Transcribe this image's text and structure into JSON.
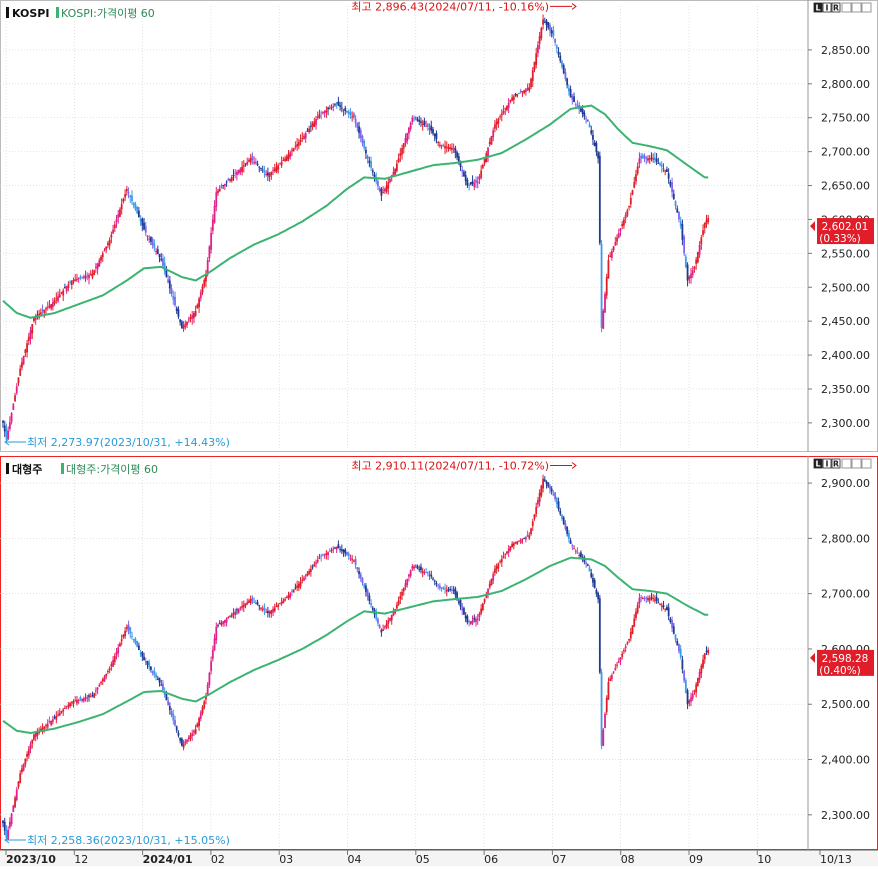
{
  "bottom_axis": {
    "labels": [
      "2023/10",
      "12",
      "2024/01",
      "02",
      "03",
      "04",
      "05",
      "06",
      "07",
      "08",
      "09",
      "10",
      "10/13"
    ],
    "bold": [
      true,
      false,
      true,
      false,
      false,
      false,
      false,
      false,
      false,
      false,
      false,
      false,
      false
    ]
  },
  "chart_data": [
    {
      "type": "candlestick",
      "series": [
        {
          "name": "KOSPI"
        },
        {
          "name": "KOSPI:가격이평 60"
        }
      ],
      "legend_position": "top-left",
      "panel_icons": [
        "L",
        "I",
        "R"
      ],
      "yaxis_ticks": [
        "2,850.00",
        "2,800.00",
        "2,750.00",
        "2,700.00",
        "2,650.00",
        "2,600.00",
        "2,550.00",
        "2,500.00",
        "2,450.00",
        "2,400.00",
        "2,350.00",
        "2,300.00"
      ],
      "yaxis_tick_values": [
        2850,
        2800,
        2750,
        2700,
        2650,
        2600,
        2550,
        2500,
        2450,
        2400,
        2350,
        2300
      ],
      "ylim": [
        2260,
        2900
      ],
      "grid": true,
      "annotation_high": "최고 2,896.43(2024/07/11, -10.16%)",
      "annotation_low": "최저 2,273.97(2023/10/31, +14.43%)",
      "high_value": 2896.43,
      "low_value": 2273.97,
      "last_price_label": "2,602.01",
      "last_change_label": "(0.33%)",
      "last_value": 2602.01,
      "price_keypoints": [
        [
          0,
          2300
        ],
        [
          2,
          2275
        ],
        [
          10,
          2380
        ],
        [
          18,
          2455
        ],
        [
          28,
          2475
        ],
        [
          40,
          2510
        ],
        [
          52,
          2520
        ],
        [
          62,
          2570
        ],
        [
          72,
          2645
        ],
        [
          82,
          2585
        ],
        [
          92,
          2540
        ],
        [
          104,
          2440
        ],
        [
          112,
          2465
        ],
        [
          118,
          2520
        ],
        [
          124,
          2640
        ],
        [
          134,
          2665
        ],
        [
          144,
          2690
        ],
        [
          154,
          2665
        ],
        [
          164,
          2690
        ],
        [
          174,
          2720
        ],
        [
          184,
          2755
        ],
        [
          194,
          2770
        ],
        [
          204,
          2750
        ],
        [
          212,
          2690
        ],
        [
          220,
          2635
        ],
        [
          228,
          2675
        ],
        [
          238,
          2750
        ],
        [
          248,
          2735
        ],
        [
          254,
          2710
        ],
        [
          262,
          2705
        ],
        [
          270,
          2650
        ],
        [
          276,
          2655
        ],
        [
          286,
          2740
        ],
        [
          296,
          2780
        ],
        [
          306,
          2795
        ],
        [
          314,
          2895
        ],
        [
          320,
          2870
        ],
        [
          330,
          2780
        ],
        [
          340,
          2745
        ],
        [
          346,
          2690
        ],
        [
          348,
          2440
        ],
        [
          352,
          2540
        ],
        [
          358,
          2580
        ],
        [
          364,
          2620
        ],
        [
          370,
          2690
        ],
        [
          378,
          2690
        ],
        [
          386,
          2670
        ],
        [
          394,
          2590
        ],
        [
          398,
          2510
        ],
        [
          402,
          2530
        ],
        [
          408,
          2595
        ],
        [
          410,
          2602
        ]
      ],
      "ma_keypoints": [
        [
          0,
          2480
        ],
        [
          8,
          2462
        ],
        [
          16,
          2455
        ],
        [
          30,
          2462
        ],
        [
          44,
          2475
        ],
        [
          58,
          2488
        ],
        [
          72,
          2510
        ],
        [
          82,
          2528
        ],
        [
          92,
          2530
        ],
        [
          104,
          2515
        ],
        [
          112,
          2510
        ],
        [
          120,
          2522
        ],
        [
          132,
          2543
        ],
        [
          146,
          2563
        ],
        [
          160,
          2578
        ],
        [
          174,
          2597
        ],
        [
          188,
          2620
        ],
        [
          200,
          2645
        ],
        [
          210,
          2662
        ],
        [
          222,
          2660
        ],
        [
          236,
          2670
        ],
        [
          250,
          2680
        ],
        [
          262,
          2683
        ],
        [
          276,
          2688
        ],
        [
          290,
          2698
        ],
        [
          304,
          2718
        ],
        [
          318,
          2740
        ],
        [
          330,
          2763
        ],
        [
          342,
          2768
        ],
        [
          350,
          2755
        ],
        [
          358,
          2732
        ],
        [
          366,
          2713
        ],
        [
          376,
          2708
        ],
        [
          386,
          2702
        ],
        [
          398,
          2680
        ],
        [
          408,
          2662
        ]
      ]
    },
    {
      "type": "candlestick",
      "series": [
        {
          "name": "대형주"
        },
        {
          "name": "대형주:가격이평 60"
        }
      ],
      "legend_position": "top-left",
      "panel_icons": [
        "L",
        "I",
        "R"
      ],
      "yaxis_ticks": [
        "2,900.00",
        "2,800.00",
        "2,700.00",
        "2,600.00",
        "2,500.00",
        "2,400.00",
        "2,300.00"
      ],
      "yaxis_tick_values": [
        2900,
        2800,
        2700,
        2600,
        2500,
        2400,
        2300
      ],
      "ylim": [
        2240,
        2920
      ],
      "grid": true,
      "annotation_high": "최고 2,910.11(2024/07/11, -10.72%)",
      "annotation_low": "최저 2,258.36(2023/10/31, +15.05%)",
      "high_value": 2910.11,
      "low_value": 2258.36,
      "last_price_label": "2,598.28",
      "last_change_label": "(0.40%)",
      "last_value": 2598.28,
      "price_keypoints": [
        [
          0,
          2285
        ],
        [
          2,
          2258
        ],
        [
          10,
          2375
        ],
        [
          18,
          2445
        ],
        [
          28,
          2470
        ],
        [
          40,
          2505
        ],
        [
          52,
          2515
        ],
        [
          62,
          2565
        ],
        [
          72,
          2640
        ],
        [
          82,
          2580
        ],
        [
          92,
          2535
        ],
        [
          104,
          2425
        ],
        [
          112,
          2455
        ],
        [
          118,
          2515
        ],
        [
          124,
          2640
        ],
        [
          134,
          2665
        ],
        [
          144,
          2690
        ],
        [
          154,
          2665
        ],
        [
          164,
          2690
        ],
        [
          174,
          2725
        ],
        [
          184,
          2765
        ],
        [
          194,
          2785
        ],
        [
          204,
          2760
        ],
        [
          212,
          2695
        ],
        [
          220,
          2630
        ],
        [
          228,
          2672
        ],
        [
          238,
          2750
        ],
        [
          248,
          2735
        ],
        [
          254,
          2710
        ],
        [
          262,
          2705
        ],
        [
          270,
          2648
        ],
        [
          276,
          2655
        ],
        [
          286,
          2745
        ],
        [
          296,
          2790
        ],
        [
          306,
          2805
        ],
        [
          314,
          2908
        ],
        [
          320,
          2880
        ],
        [
          330,
          2790
        ],
        [
          340,
          2750
        ],
        [
          346,
          2690
        ],
        [
          348,
          2425
        ],
        [
          352,
          2540
        ],
        [
          358,
          2578
        ],
        [
          364,
          2618
        ],
        [
          370,
          2692
        ],
        [
          378,
          2692
        ],
        [
          386,
          2670
        ],
        [
          394,
          2585
        ],
        [
          398,
          2500
        ],
        [
          402,
          2525
        ],
        [
          408,
          2592
        ],
        [
          410,
          2598
        ]
      ],
      "ma_keypoints": [
        [
          0,
          2470
        ],
        [
          8,
          2452
        ],
        [
          16,
          2448
        ],
        [
          30,
          2456
        ],
        [
          44,
          2468
        ],
        [
          58,
          2482
        ],
        [
          72,
          2505
        ],
        [
          82,
          2522
        ],
        [
          92,
          2524
        ],
        [
          104,
          2510
        ],
        [
          112,
          2505
        ],
        [
          120,
          2518
        ],
        [
          132,
          2540
        ],
        [
          146,
          2562
        ],
        [
          160,
          2580
        ],
        [
          174,
          2600
        ],
        [
          188,
          2625
        ],
        [
          200,
          2650
        ],
        [
          210,
          2668
        ],
        [
          222,
          2664
        ],
        [
          236,
          2675
        ],
        [
          250,
          2686
        ],
        [
          262,
          2690
        ],
        [
          276,
          2694
        ],
        [
          290,
          2705
        ],
        [
          304,
          2726
        ],
        [
          318,
          2750
        ],
        [
          330,
          2765
        ],
        [
          342,
          2762
        ],
        [
          350,
          2750
        ],
        [
          358,
          2728
        ],
        [
          366,
          2708
        ],
        [
          376,
          2705
        ],
        [
          386,
          2700
        ],
        [
          398,
          2678
        ],
        [
          408,
          2662
        ]
      ]
    }
  ]
}
